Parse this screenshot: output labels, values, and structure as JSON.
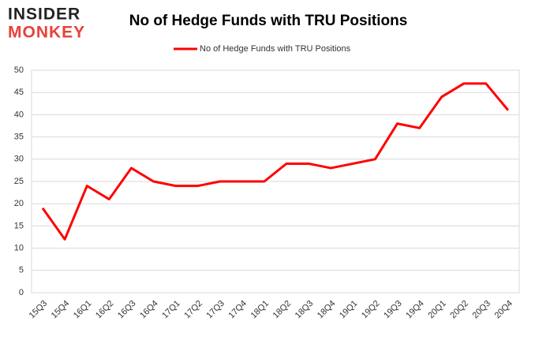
{
  "logo": {
    "top": "INSIDER",
    "bottom": "MONKEY"
  },
  "chart_data": {
    "type": "line",
    "title": "No of Hedge Funds with TRU Positions",
    "categories": [
      "15Q3",
      "15Q4",
      "16Q1",
      "16Q2",
      "16Q3",
      "16Q4",
      "17Q1",
      "17Q2",
      "17Q3",
      "17Q4",
      "18Q1",
      "18Q2",
      "18Q3",
      "18Q4",
      "19Q1",
      "19Q2",
      "19Q3",
      "19Q4",
      "20Q1",
      "20Q2",
      "20Q3",
      "20Q4"
    ],
    "series": [
      {
        "name": "No of Hedge Funds with TRU Positions",
        "color": "#ff0000",
        "values": [
          19,
          12,
          24,
          21,
          28,
          25,
          24,
          24,
          25,
          25,
          25,
          29,
          29,
          28,
          29,
          30,
          38,
          37,
          44,
          47,
          47,
          41
        ]
      }
    ],
    "ylim": [
      0,
      50
    ],
    "yticks": [
      0,
      5,
      10,
      15,
      20,
      25,
      30,
      35,
      40,
      45,
      50
    ],
    "grid": true,
    "legend": "top"
  }
}
